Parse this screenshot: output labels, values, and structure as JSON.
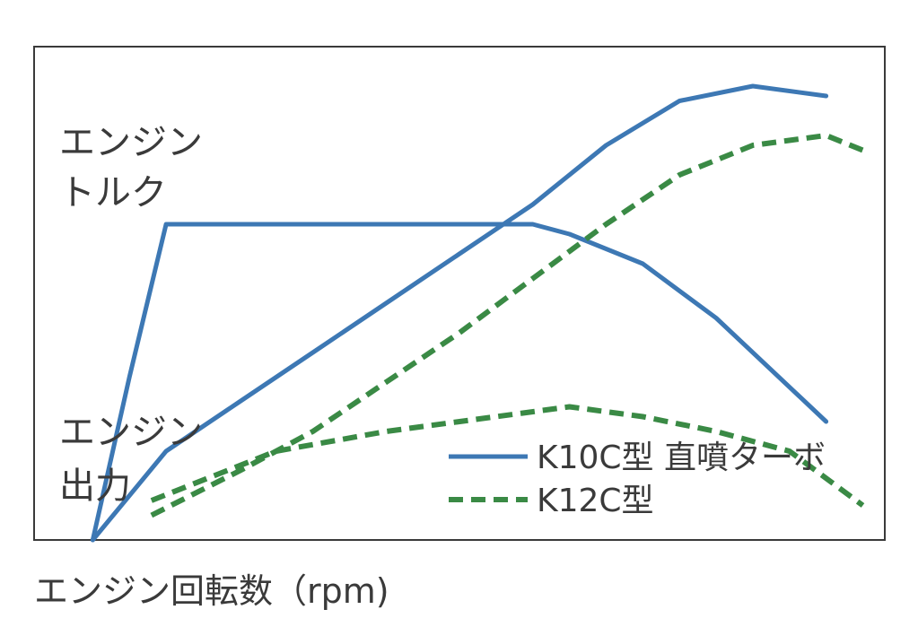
{
  "chart_data": {
    "type": "line",
    "xlabel": "エンジン回転数（rpm)",
    "ylabel_lines": {
      "torque": [
        "エンジン",
        "トルク"
      ],
      "power": [
        "エンジン",
        "出力"
      ]
    },
    "x_ticks": [],
    "y_ticks": [],
    "grid": false,
    "legend_position": "bottom-right",
    "series": [
      {
        "name": "K10C型 直噴ターボ",
        "metric": "torque",
        "style": "solid",
        "color": "#3d78b4",
        "x": [
          0,
          5,
          10,
          60,
          65,
          75,
          85,
          100
        ],
        "y": [
          0,
          33,
          64,
          64,
          62,
          56,
          45,
          24
        ]
      },
      {
        "name": "K10C型 直噴ターボ",
        "metric": "power",
        "style": "solid",
        "color": "#3d78b4",
        "x": [
          0,
          10,
          20,
          30,
          40,
          50,
          60,
          70,
          80,
          90,
          100
        ],
        "y": [
          0,
          18,
          28,
          38,
          48,
          58,
          68,
          80,
          89,
          92,
          90
        ]
      },
      {
        "name": "K12C型",
        "metric": "torque",
        "style": "dashed",
        "color": "#3a8a45",
        "x": [
          8,
          25,
          40,
          55,
          65,
          75,
          85,
          95,
          105
        ],
        "y": [
          8,
          18,
          22,
          25,
          27,
          25,
          22,
          18,
          7
        ]
      },
      {
        "name": "K12C型",
        "metric": "power",
        "style": "dashed",
        "color": "#3a8a45",
        "x": [
          8,
          20,
          30,
          40,
          50,
          60,
          70,
          80,
          90,
          100,
          105
        ],
        "y": [
          5,
          14,
          22,
          32,
          42,
          53,
          64,
          74,
          80,
          82,
          79
        ]
      }
    ],
    "legend": [
      {
        "label": "K10C型 直噴ターボ",
        "style": "solid",
        "color": "#3d78b4"
      },
      {
        "label": "K12C型",
        "style": "dashed",
        "color": "#3a8a45"
      }
    ],
    "xlim": [
      -8,
      108
    ],
    "ylim": [
      0,
      100
    ]
  }
}
